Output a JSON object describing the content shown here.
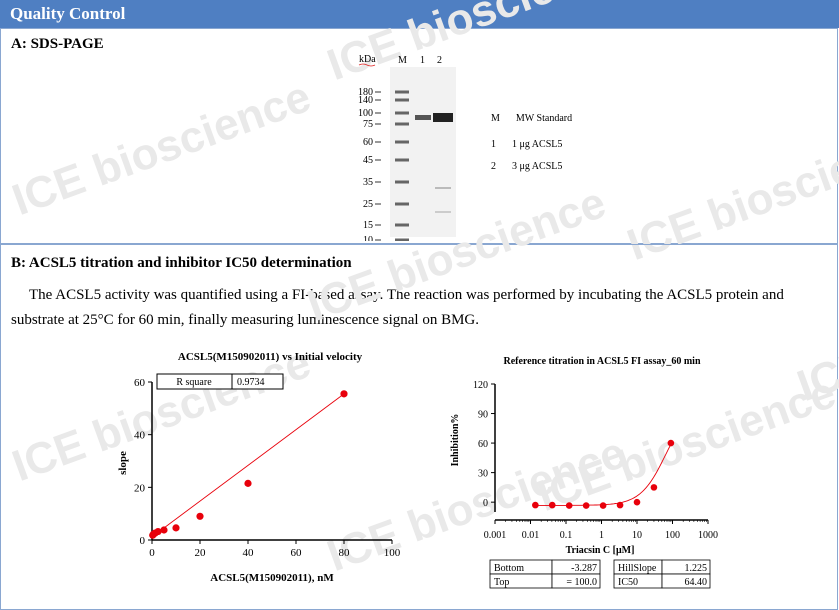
{
  "header": {
    "title": "Quality Control"
  },
  "watermark": "ICE bioscience",
  "sectionA": {
    "title": "A: SDS-PAGE",
    "gel": {
      "unit_label": "kDa",
      "lane_labels": [
        "M",
        "1",
        "2"
      ],
      "markers": [
        "180",
        "140",
        "100",
        "75",
        "60",
        "45",
        "35",
        "25",
        "15",
        "10"
      ]
    },
    "legend": [
      {
        "key": "M",
        "desc": "MW Standard"
      },
      {
        "key": "1",
        "desc": "1 μg ACSL5"
      },
      {
        "key": "2",
        "desc": "3 μg ACSL5"
      }
    ]
  },
  "sectionB": {
    "title": "B: ACSL5 titration and inhibitor IC50 determination",
    "paragraph": "The ACSL5 activity was quantified using a FI-based assay. The reaction was performed by incubating the ACSL5 protein and substrate at 25°C for 60 min, finally measuring luminescence signal on BMG."
  },
  "chart_data": [
    {
      "type": "scatter",
      "title": "ACSL5(M150902011) vs Initial velocity",
      "xlabel": "ACSL5(M150902011), nM",
      "ylabel": "slope",
      "xlim": [
        0,
        100
      ],
      "ylim": [
        0,
        60
      ],
      "xticks": [
        "0",
        "20",
        "40",
        "60",
        "80",
        "100"
      ],
      "yticks": [
        "0",
        "20",
        "40",
        "60"
      ],
      "x": [
        0.3,
        0.6,
        1.25,
        2.5,
        5,
        10,
        20,
        40,
        80
      ],
      "y": [
        1.8,
        2.2,
        2.6,
        3.2,
        3.8,
        4.6,
        9.0,
        21.5,
        55.5
      ],
      "fit_line": {
        "x": [
          0,
          80
        ],
        "y": [
          1.2,
          55.5
        ]
      },
      "stats": {
        "label": "R square",
        "value": "0.9734"
      },
      "color": "#e8000b"
    },
    {
      "type": "scatter",
      "title": "Reference titration in ACSL5 FI assay_60 min",
      "xlabel": "Triacsin C [μM]",
      "ylabel": "Inhibition%",
      "xscale": "log",
      "xlim": [
        0.001,
        1000
      ],
      "ylim": [
        -10,
        120
      ],
      "xticks": [
        "0.001",
        "0.01",
        "0.1",
        "1",
        "10",
        "100",
        "1000"
      ],
      "yticks": [
        "0",
        "30",
        "60",
        "90",
        "120"
      ],
      "x": [
        0.0137,
        0.041,
        0.123,
        0.37,
        1.11,
        3.33,
        10,
        30,
        90
      ],
      "y": [
        -3,
        -3,
        -3.5,
        -3.5,
        -3.5,
        -3,
        0,
        15,
        60
      ],
      "error": [
        0,
        0,
        0,
        0,
        0,
        0,
        3,
        0,
        0
      ],
      "fit": {
        "bottom": -3.287,
        "top": 100.0,
        "hill": 1.225,
        "ic50": 64.4
      },
      "table": [
        [
          "Bottom",
          "-3.287",
          "HillSlope",
          "1.225"
        ],
        [
          "Top",
          "= 100.0",
          "IC50",
          "64.40"
        ]
      ],
      "color": "#e8000b"
    }
  ]
}
